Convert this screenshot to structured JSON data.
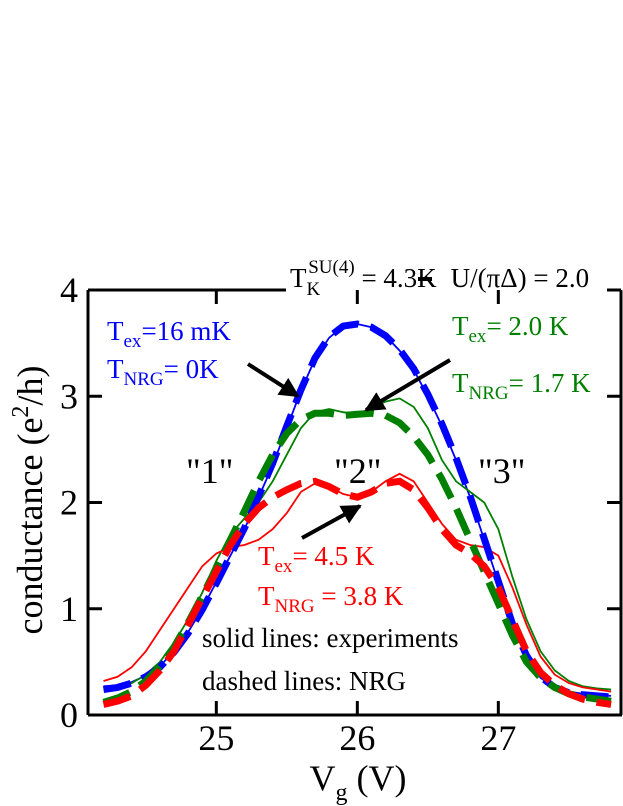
{
  "chart_data": {
    "type": "line",
    "x_label": [
      "V",
      "g",
      " (V)"
    ],
    "y_label": [
      "conductance (e",
      "2",
      "/h)"
    ],
    "xlim": [
      24.09,
      27.87
    ],
    "ylim": [
      0,
      4
    ],
    "xticks": [
      25,
      26,
      27
    ],
    "yticks": [
      0,
      1,
      2,
      3,
      4
    ],
    "x": [
      24.2,
      24.3,
      24.4,
      24.5,
      24.6,
      24.7,
      24.8,
      24.9,
      25.0,
      25.1,
      25.2,
      25.3,
      25.4,
      25.5,
      25.6,
      25.7,
      25.8,
      25.9,
      26.0,
      26.1,
      26.2,
      26.3,
      26.4,
      26.5,
      26.6,
      26.7,
      26.8,
      26.9,
      27.0,
      27.1,
      27.2,
      27.3,
      27.4,
      27.5,
      27.6,
      27.7,
      27.8
    ],
    "series": [
      {
        "color": "#0000ff",
        "style": "solid",
        "values": [
          0.27,
          0.28,
          0.31,
          0.37,
          0.46,
          0.6,
          0.78,
          1.0,
          1.25,
          1.5,
          1.75,
          2.05,
          2.35,
          2.7,
          3.05,
          3.35,
          3.55,
          3.66,
          3.68,
          3.65,
          3.57,
          3.43,
          3.25,
          3.0,
          2.72,
          2.4,
          2.05,
          1.65,
          1.25,
          0.85,
          0.55,
          0.35,
          0.26,
          0.22,
          0.2,
          0.19,
          0.18
        ]
      },
      {
        "color": "#0000ff",
        "style": "dashed",
        "values": [
          0.24,
          0.26,
          0.3,
          0.36,
          0.45,
          0.59,
          0.77,
          0.99,
          1.24,
          1.5,
          1.76,
          2.06,
          2.37,
          2.72,
          3.06,
          3.36,
          3.56,
          3.66,
          3.68,
          3.65,
          3.57,
          3.44,
          3.26,
          3.02,
          2.74,
          2.42,
          2.06,
          1.66,
          1.26,
          0.86,
          0.56,
          0.36,
          0.26,
          0.21,
          0.19,
          0.18,
          0.17
        ]
      },
      {
        "color": "#008000",
        "style": "solid",
        "values": [
          0.25,
          0.27,
          0.3,
          0.38,
          0.5,
          0.68,
          0.9,
          1.15,
          1.45,
          1.7,
          1.85,
          2.0,
          2.2,
          2.45,
          2.7,
          2.85,
          2.88,
          2.85,
          2.83,
          2.88,
          2.95,
          2.98,
          2.9,
          2.7,
          2.4,
          2.2,
          2.1,
          2.0,
          1.75,
          1.3,
          0.9,
          0.6,
          0.42,
          0.32,
          0.27,
          0.25,
          0.24
        ]
      },
      {
        "color": "#008000",
        "style": "dashed",
        "values": [
          0.12,
          0.16,
          0.22,
          0.32,
          0.46,
          0.64,
          0.87,
          1.12,
          1.38,
          1.65,
          1.92,
          2.2,
          2.45,
          2.65,
          2.78,
          2.84,
          2.84,
          2.82,
          2.83,
          2.84,
          2.82,
          2.75,
          2.62,
          2.45,
          2.22,
          1.95,
          1.65,
          1.35,
          1.05,
          0.75,
          0.5,
          0.35,
          0.26,
          0.2,
          0.17,
          0.15,
          0.13
        ]
      },
      {
        "color": "#ff0000",
        "style": "solid",
        "values": [
          0.32,
          0.36,
          0.45,
          0.6,
          0.8,
          1.0,
          1.2,
          1.4,
          1.52,
          1.58,
          1.6,
          1.65,
          1.75,
          1.9,
          2.1,
          2.18,
          2.15,
          2.08,
          2.05,
          2.1,
          2.2,
          2.27,
          2.2,
          2.0,
          1.8,
          1.65,
          1.6,
          1.58,
          1.5,
          1.2,
          0.85,
          0.55,
          0.38,
          0.3,
          0.26,
          0.24,
          0.22
        ]
      },
      {
        "color": "#ff0000",
        "style": "dashed",
        "values": [
          0.1,
          0.13,
          0.18,
          0.28,
          0.42,
          0.6,
          0.85,
          1.1,
          1.35,
          1.6,
          1.8,
          1.95,
          2.05,
          2.12,
          2.18,
          2.2,
          2.15,
          2.08,
          2.05,
          2.1,
          2.18,
          2.2,
          2.12,
          1.95,
          1.75,
          1.6,
          1.52,
          1.4,
          1.2,
          0.9,
          0.6,
          0.4,
          0.28,
          0.2,
          0.15,
          0.12,
          0.1
        ]
      }
    ],
    "annotations": {
      "top": [
        "T",
        "K",
        "SU(4)",
        " = 4.3K",
        "U/(πΔ) = 2.0"
      ],
      "blue": [
        [
          "T",
          "ex",
          "=16 mK"
        ],
        [
          "T",
          "NRG",
          "= 0K"
        ]
      ],
      "green": [
        [
          "T",
          "ex",
          "= 2.0 K"
        ],
        [
          "T",
          "NRG",
          "= 1.7 K"
        ]
      ],
      "red": [
        [
          "T",
          "ex",
          "= 4.5 K"
        ],
        [
          "T",
          "NRG",
          " = 3.8 K"
        ]
      ],
      "peaks": [
        "\"1\"",
        "\"2\"",
        "\"3\""
      ],
      "notes": [
        "solid lines: experiments",
        "dashed lines: NRG"
      ]
    }
  }
}
